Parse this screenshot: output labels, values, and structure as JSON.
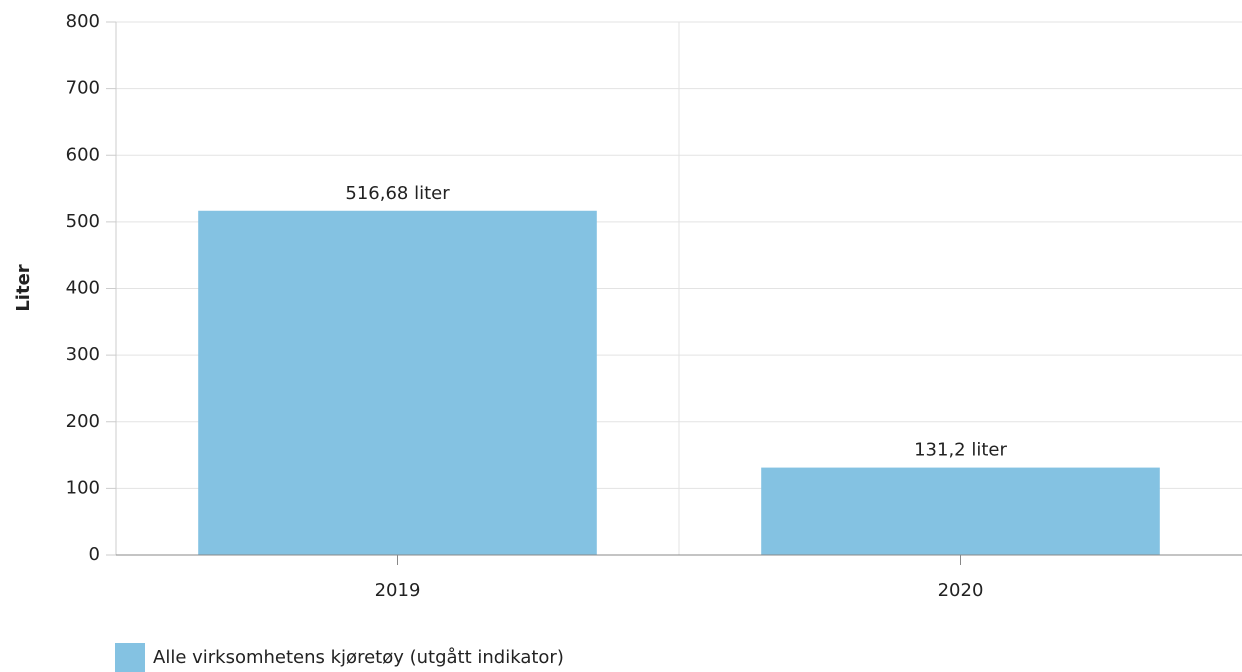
{
  "chart_data": {
    "type": "bar",
    "categories": [
      "2019",
      "2020"
    ],
    "series": [
      {
        "name": "Alle virksomhetens kjøretøy (utgått indikator)",
        "color": "#84c2e2",
        "values": [
          516.68,
          131.2
        ],
        "value_labels": [
          "516,68 liter",
          "131,2 liter"
        ]
      }
    ],
    "y_label": "Liter",
    "ylim": [
      0,
      800
    ],
    "yticks": [
      0,
      100,
      200,
      300,
      400,
      500,
      600,
      700,
      800
    ],
    "grid": true
  }
}
